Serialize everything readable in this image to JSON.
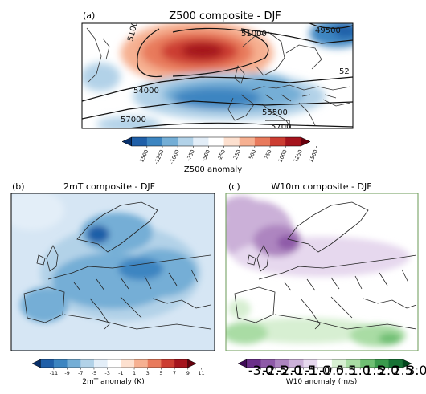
{
  "chart_data": [
    {
      "type": "heatmap",
      "panel_label": "(a)",
      "title": "Z500 composite - DJF",
      "colorbar_label": "Z500 anomaly",
      "colorbar_ticks": [
        "-1500",
        "-1250",
        "-1000",
        "-750",
        "-500",
        "-250",
        "250",
        "500",
        "750",
        "1000",
        "1250",
        "1500"
      ],
      "colorbar_colors": [
        "#08306b",
        "#1f5fa8",
        "#3c85c1",
        "#74aed6",
        "#b2d2e8",
        "#e3eef8",
        "#ffffff",
        "#fde0cf",
        "#f6b091",
        "#e87a5c",
        "#cc3d32",
        "#a5141d",
        "#67000d"
      ],
      "contour_labels": [
        "51000",
        "49500",
        "5100",
        "52",
        "54000",
        "55500",
        "57000",
        "5700"
      ],
      "features": [
        {
          "kind": "positive anomaly",
          "location": "North Atlantic / Greenland-Iceland"
        },
        {
          "kind": "negative anomaly",
          "location": "central Atlantic to Europe"
        }
      ]
    },
    {
      "type": "heatmap",
      "panel_label": "(b)",
      "title": "2mT composite - DJF",
      "colorbar_label": "2mT anomaly (K)",
      "colorbar_ticks": [
        "-11",
        "-9",
        "-7",
        "-5",
        "-3",
        "-1",
        "1",
        "3",
        "5",
        "7",
        "9",
        "11"
      ],
      "colorbar_colors": [
        "#08306b",
        "#1f5fa8",
        "#3c85c1",
        "#74aed6",
        "#b2d2e8",
        "#e3eef8",
        "#ffffff",
        "#fde0cf",
        "#f6b091",
        "#e87a5c",
        "#cc3d32",
        "#a5141d",
        "#67000d"
      ],
      "features": [
        {
          "kind": "negative anomaly",
          "location": "most of Europe, strongest over Scandinavia"
        }
      ]
    },
    {
      "type": "heatmap",
      "panel_label": "(c)",
      "title": "W10m composite - DJF",
      "colorbar_label": "W10 anomaly (m/s)",
      "colorbar_ticks": [
        "-3.0",
        "-2.5",
        "-2.0",
        "-1.5",
        "-1.0",
        "-0.5",
        "0.5",
        "1.0",
        "1.5",
        "2.0",
        "2.5",
        "3.0"
      ],
      "colorbar_colors": [
        "#3f0a57",
        "#6b2f8a",
        "#8e5aa8",
        "#ad85c0",
        "#cbb0d8",
        "#e6d8ee",
        "#ffffff",
        "#d7efd2",
        "#a9dca4",
        "#6fbf73",
        "#3a9a4c",
        "#177335",
        "#00441b"
      ],
      "features": [
        {
          "kind": "negative anomaly",
          "location": "north-west and central Europe, strongest over the North Sea"
        },
        {
          "kind": "positive anomaly",
          "location": "Mediterranean"
        }
      ]
    }
  ]
}
